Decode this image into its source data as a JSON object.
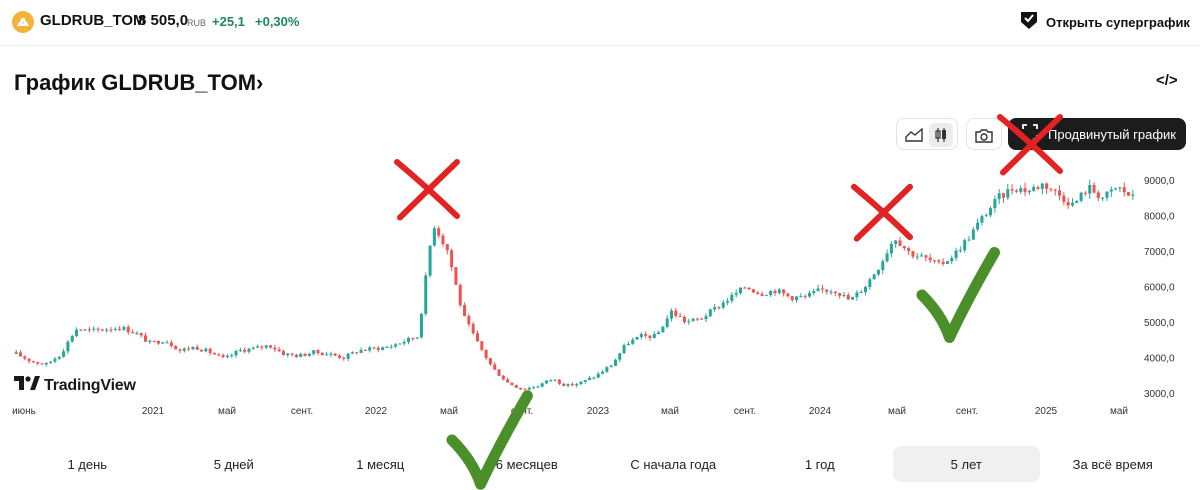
{
  "ticker": {
    "name": "GLDRUB_TOM",
    "price": "8 505,0",
    "currency": "RUB",
    "change": "+25,1",
    "change_pct": "+0,30%"
  },
  "header": {
    "supergraph_label": "Открыть суперграфик"
  },
  "page": {
    "title": "График GLDRUB_TOM›",
    "embed_icon": "</>"
  },
  "toolbar": {
    "icons": [
      "area-chart-icon",
      "candles-icon",
      "camera-icon"
    ],
    "advanced_label": "Продвинутый график"
  },
  "branding": {
    "label": "TradingView"
  },
  "periods": [
    {
      "label": "1 день",
      "active": false
    },
    {
      "label": "5 дней",
      "active": false
    },
    {
      "label": "1 месяц",
      "active": false
    },
    {
      "label": "6 месяцев",
      "active": false
    },
    {
      "label": "С начала года",
      "active": false
    },
    {
      "label": "1 год",
      "active": false
    },
    {
      "label": "5 лет",
      "active": true
    },
    {
      "label": "За всё время",
      "active": false
    }
  ],
  "colors": {
    "up": "#26a69a",
    "down": "#ef5350",
    "accent_green": "#1a8a5a",
    "cross": "#e32222",
    "check": "#4a8f2a"
  },
  "chart_data": {
    "type": "candlestick",
    "y_ticks": [
      "9000,0",
      "8000,0",
      "7000,0",
      "6000,0",
      "5000,0",
      "4000,0",
      "3000,0"
    ],
    "x_ticks": [
      "июнь",
      "2021",
      "май",
      "сент.",
      "2022",
      "май",
      "сент.",
      "2023",
      "май",
      "сент.",
      "2024",
      "май",
      "сент.",
      "2025",
      "май"
    ],
    "ylim": [
      3000,
      9000
    ],
    "series": [
      {
        "name": "",
        "values": [
          4100,
          3900,
          3800,
          4100,
          4800,
          4750,
          4800,
          4850,
          4700,
          4400,
          4500,
          4200,
          4300,
          4150,
          3950,
          4200,
          4250,
          4350,
          4100,
          4050,
          4150,
          4100,
          4000,
          4200,
          4250,
          4300,
          4450,
          4600,
          7800,
          7000,
          5200,
          4400,
          3700,
          3300,
          3100,
          3200,
          3400,
          3200,
          3300,
          3500,
          3800,
          4400,
          4600,
          4600,
          5300,
          5000,
          5100,
          5400,
          5700,
          6000,
          5800,
          5900,
          5700,
          5700,
          5900,
          5900,
          5600,
          6000,
          6600,
          7400,
          6950,
          6800,
          6600,
          6900,
          7400,
          8000,
          8500,
          8800,
          8700,
          8900,
          8600,
          8300,
          8800,
          8500,
          8800,
          8500
        ]
      }
    ]
  },
  "annotations": {
    "crosses": 3,
    "checks": 2
  }
}
